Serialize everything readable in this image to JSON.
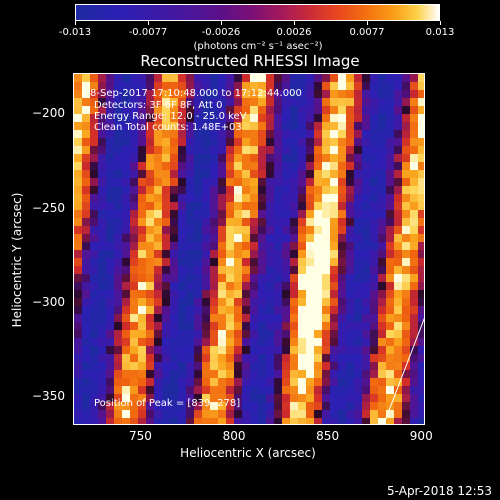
{
  "colorbar": {
    "ticks": [
      "-0.013",
      "-0.0077",
      "-0.0026",
      "0.0026",
      "0.0077",
      "0.013"
    ],
    "units": "(photons cm⁻² s⁻¹ asec⁻²)"
  },
  "title": "Reconstructed RHESSI Image",
  "annotations": {
    "time": "8-Sep-2017 17:10:48.000 to 17:12:44.000",
    "detectors": "Detectors: 3F 6F 8F, Att 0",
    "energy": "Energy Range: 12.0 - 25.0 keV",
    "clean": "Clean     Total counts: 1.48E+03",
    "peak": "Position of Peak = [839,-278]"
  },
  "chart_data": {
    "type": "heatmap",
    "title": "Reconstructed RHESSI Image",
    "xlabel": "Heliocentric X (arcsec)",
    "ylabel": "Heliocentric Y (arcsec)",
    "xlim": [
      714,
      902
    ],
    "ylim": [
      -365,
      -178
    ],
    "xticks": [
      "750",
      "800",
      "850",
      "900"
    ],
    "yticks": [
      "-200",
      "-250",
      "-300",
      "-350"
    ],
    "colorbar_range": [
      -0.013,
      0.013
    ],
    "peak_position": [
      839,
      -278
    ],
    "colors": {
      "low": "#1e2aa0",
      "mid": "#7a0f78",
      "high": "#ffffff"
    }
  },
  "timestamp": "5-Apr-2018 12:53"
}
